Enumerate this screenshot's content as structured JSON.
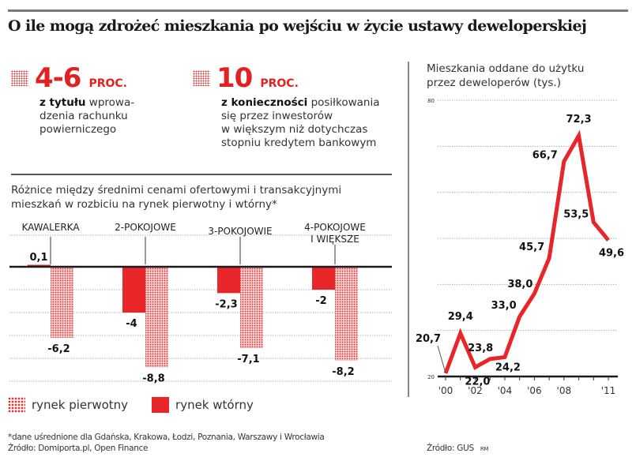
{
  "title": "O ile mogą zdrożeć mieszkania po wejściu w życie ustawy deweloperskiej",
  "stats": [
    {
      "value": "4-6",
      "unit": "PROC.",
      "bold": "z tytułu",
      "lines": [
        "wprowa-",
        "dzenia rachunku",
        "powierniczego"
      ]
    },
    {
      "value": "10",
      "unit": "PROC.",
      "bold": "z konieczności",
      "lines": [
        "posiłkowania",
        "się przez inwestorów",
        "w większym niż dotychczas",
        "stopniu kredytem bankowym"
      ]
    }
  ],
  "colors": {
    "accent": "#e8262a",
    "pattern": "#e53030",
    "axis": "#1a1a1a",
    "grid": "#b0b0b0"
  },
  "legend": {
    "primary": "rynek pierwotny",
    "secondary": "rynek wtórny"
  },
  "footnote": {
    "left_line1": "*dane uśrednione dla Gdańska, Krakowa, Łodzi, Poznania, Warszawy i Wrocławia",
    "left_line2": "Źródło: Domiporta.pl, Open Finance",
    "right": "Źródło: GUS",
    "right_tag": "RM"
  },
  "chart_data": [
    {
      "type": "bar",
      "title": "Różnice między średnimi cenami ofertowymi i transakcyjnymi mieszkań w rozbiciu na rynek pierwotny i wtórny*",
      "title_lines": [
        "Różnice między średnimi cenami ofertowymi i transakcyjnymi",
        "mieszkań w rozbiciu na rynek pierwotny i wtórny*"
      ],
      "categories": [
        "KAWALERKA",
        "2-POKOJOWE",
        "3-POKOJOWIE",
        "4-POKOJOWE I WIĘKSZE"
      ],
      "category_lines": [
        [
          "KAWALERKA"
        ],
        [
          "2-POKOJOWE"
        ],
        [
          "3-POKOJOWIE"
        ],
        [
          "4-POKOJOWE",
          "I WIĘKSZE"
        ]
      ],
      "series": [
        {
          "name": "rynek wtórny",
          "style": "solid",
          "values": [
            0.1,
            -4,
            -2.3,
            -2
          ],
          "labels": [
            "0,1",
            "-4",
            "-2,3",
            "-2"
          ]
        },
        {
          "name": "rynek pierwotny",
          "style": "dotted",
          "values": [
            -6.2,
            -8.8,
            -7.1,
            -8.2
          ],
          "labels": [
            "-6,2",
            "-8,8",
            "-7,1",
            "-8,2"
          ]
        }
      ],
      "ylim": [
        -10,
        2
      ],
      "grid": true,
      "legend_position": "bottom-left"
    },
    {
      "type": "line",
      "title": "Mieszkania oddane do użytku przez deweloperów (tys.)",
      "title_lines": [
        "Mieszkania oddane do użytku",
        "przez deweloperów (tys.)"
      ],
      "x": [
        2000,
        2001,
        2002,
        2003,
        2004,
        2005,
        2006,
        2007,
        2008,
        2009,
        2010,
        2011
      ],
      "values": [
        20.7,
        29.4,
        22.0,
        23.8,
        24.2,
        33.0,
        38.0,
        45.7,
        66.7,
        72.3,
        53.5,
        49.6
      ],
      "labels": [
        "20,7",
        "29,4",
        "22,0",
        "23,8",
        "24,2",
        "33,0",
        "38,0",
        "45,7",
        "66,7",
        "72,3",
        "53,5",
        "49,6"
      ],
      "xtick_labels": [
        "'00",
        "'02",
        "'04",
        "'06",
        "'08",
        "'11"
      ],
      "xtick_values": [
        2000,
        2002,
        2004,
        2006,
        2008,
        2011
      ],
      "ytick_labels": [
        "20",
        "80"
      ],
      "ylim": [
        20,
        80
      ],
      "grid": true
    }
  ]
}
